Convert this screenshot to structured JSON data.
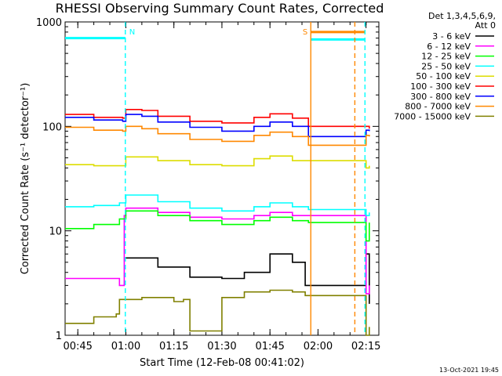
{
  "chart_data": {
    "type": "line",
    "title": "RHESSI Observing Summary Count Rates, Corrected",
    "xlabel": "Start Time (12-Feb-08 00:41:02)",
    "ylabel": "Corrected Count Rate (s⁻¹ detector⁻¹)",
    "y_scale": "log",
    "ylim": [
      1,
      1000
    ],
    "xlim": [
      "00:41:02",
      "02:19:00"
    ],
    "x_ticks": [
      "00:45",
      "01:00",
      "01:15",
      "01:30",
      "01:45",
      "02:00",
      "02:15"
    ],
    "y_ticks": [
      "1",
      "10",
      "100",
      "1000"
    ],
    "legend_header": [
      "Det 1,3,4,5,6,9,",
      "Att 0"
    ],
    "legend_position": "right",
    "series": [
      {
        "name": "3 - 6 keV",
        "color": "#000000",
        "x": [
          "00:41:02",
          "00:59:00",
          "01:00:00",
          "01:10:00",
          "01:20:00",
          "01:30:00",
          "01:37:00",
          "01:45:00",
          "01:52:00",
          "01:56:00",
          "02:15:00",
          "02:16:00"
        ],
        "y": [
          null,
          null,
          5.5,
          4.5,
          3.6,
          3.5,
          4.0,
          6.0,
          5.0,
          3.0,
          6.0,
          2.0
        ]
      },
      {
        "name": "6 - 12 keV",
        "color": "#ff00ff",
        "x": [
          "00:41:02",
          "00:58:00",
          "00:59:30",
          "01:00:00",
          "01:10:00",
          "01:20:00",
          "01:30:00",
          "01:40:00",
          "01:45:00",
          "01:52:00",
          "01:57:00",
          "02:15:00",
          "02:16:00"
        ],
        "y": [
          3.5,
          3.0,
          14.0,
          16.5,
          15.0,
          13.5,
          13.0,
          14.0,
          15.0,
          14.0,
          14.0,
          2.5,
          3.0
        ]
      },
      {
        "name": "12 - 25 keV",
        "color": "#00ff00",
        "x": [
          "00:41:02",
          "00:50:00",
          "00:58:00",
          "01:00:00",
          "01:10:00",
          "01:20:00",
          "01:30:00",
          "01:40:00",
          "01:45:00",
          "01:52:00",
          "01:57:00",
          "02:15:00",
          "02:16:00"
        ],
        "y": [
          10.5,
          11.5,
          13.0,
          15.5,
          14.0,
          12.5,
          11.5,
          12.5,
          13.5,
          12.5,
          12.0,
          8.0,
          12.0
        ]
      },
      {
        "name": "25 - 50 keV",
        "color": "#00ffff",
        "x": [
          "00:41:02",
          "00:50:00",
          "00:58:00",
          "01:00:00",
          "01:10:00",
          "01:20:00",
          "01:30:00",
          "01:40:00",
          "01:45:00",
          "01:52:00",
          "01:57:00",
          "02:15:00",
          "02:16:00"
        ],
        "y": [
          17.0,
          17.5,
          18.5,
          22.0,
          19.0,
          16.5,
          15.5,
          17.0,
          18.5,
          17.0,
          16.0,
          14.0,
          15.0
        ]
      },
      {
        "name": "50 - 100 keV",
        "color": "#dddd00",
        "x": [
          "00:41:02",
          "00:50:00",
          "00:59:00",
          "01:00:00",
          "01:10:00",
          "01:20:00",
          "01:30:00",
          "01:40:00",
          "01:45:00",
          "01:52:00",
          "01:57:00",
          "02:15:00",
          "02:16:00"
        ],
        "y": [
          43.0,
          42.0,
          42.0,
          51.0,
          47.0,
          43.0,
          42.0,
          49.0,
          52.0,
          47.0,
          47.0,
          40.0,
          42.0
        ]
      },
      {
        "name": "100 - 300 keV",
        "color": "#ff0000",
        "x": [
          "00:41:02",
          "00:50:00",
          "00:59:00",
          "01:00:00",
          "01:05:00",
          "01:10:00",
          "01:20:00",
          "01:30:00",
          "01:40:00",
          "01:45:00",
          "01:52:00",
          "01:57:00",
          "02:15:00",
          "02:16:00"
        ],
        "y": [
          130,
          122,
          120,
          145,
          142,
          125,
          112,
          108,
          122,
          132,
          120,
          100,
          100,
          95
        ]
      },
      {
        "name": "300 - 800 keV",
        "color": "#0000ff",
        "x": [
          "00:41:02",
          "00:50:00",
          "00:59:00",
          "01:00:00",
          "01:05:00",
          "01:10:00",
          "01:20:00",
          "01:30:00",
          "01:40:00",
          "01:45:00",
          "01:52:00",
          "01:57:00",
          "02:15:00",
          "02:16:00"
        ],
        "y": [
          122,
          115,
          112,
          130,
          125,
          110,
          98,
          90,
          100,
          110,
          100,
          80,
          92,
          90
        ]
      },
      {
        "name": "800 - 7000 keV",
        "color": "#ff8800",
        "x": [
          "00:41:02",
          "00:50:00",
          "00:59:00",
          "01:00:00",
          "01:05:00",
          "01:10:00",
          "01:20:00",
          "01:30:00",
          "01:40:00",
          "01:45:00",
          "01:52:00",
          "01:57:00",
          "02:15:00",
          "02:16:00"
        ],
        "y": [
          98,
          92,
          90,
          100,
          95,
          85,
          75,
          72,
          82,
          88,
          80,
          66,
          82,
          80
        ]
      },
      {
        "name": "7000 - 15000 keV",
        "color": "#808000",
        "x": [
          "00:41:02",
          "00:50:00",
          "00:57:00",
          "00:58:00",
          "01:05:00",
          "01:15:00",
          "01:18:00",
          "01:20:00",
          "01:30:00",
          "01:37:00",
          "01:45:00",
          "01:52:00",
          "01:56:00",
          "02:15:00",
          "02:16:00"
        ],
        "y": [
          1.3,
          1.5,
          1.6,
          2.2,
          2.3,
          2.1,
          2.2,
          1.1,
          2.3,
          2.6,
          2.7,
          2.6,
          2.4,
          1.0,
          1.2
        ]
      }
    ],
    "annotations": [
      {
        "label": "N",
        "color": "#00ffff",
        "x": "00:59:50",
        "style": "dashed-line"
      },
      {
        "label": "S",
        "color": "#ff8800",
        "x": "01:57:45",
        "style": "solid-line"
      },
      {
        "label": "",
        "color": "#ff8800",
        "x": "02:11:30",
        "style": "dashed-line"
      },
      {
        "label": "",
        "color": "#00ffff",
        "x": "02:14:40",
        "style": "dashed-line"
      }
    ],
    "overlay_bars": [
      {
        "color": "#00ffff",
        "from": "00:41:02",
        "to": "00:59:50",
        "y": 700
      },
      {
        "color": "#ff8800",
        "from": "01:57:45",
        "to": "02:14:40",
        "y": 800
      },
      {
        "color": "#00ffff",
        "from": "01:57:45",
        "to": "02:14:40",
        "y": 680
      }
    ],
    "grid": false
  },
  "footer": {
    "timestamp": "13-Oct-2021 19:45"
  }
}
